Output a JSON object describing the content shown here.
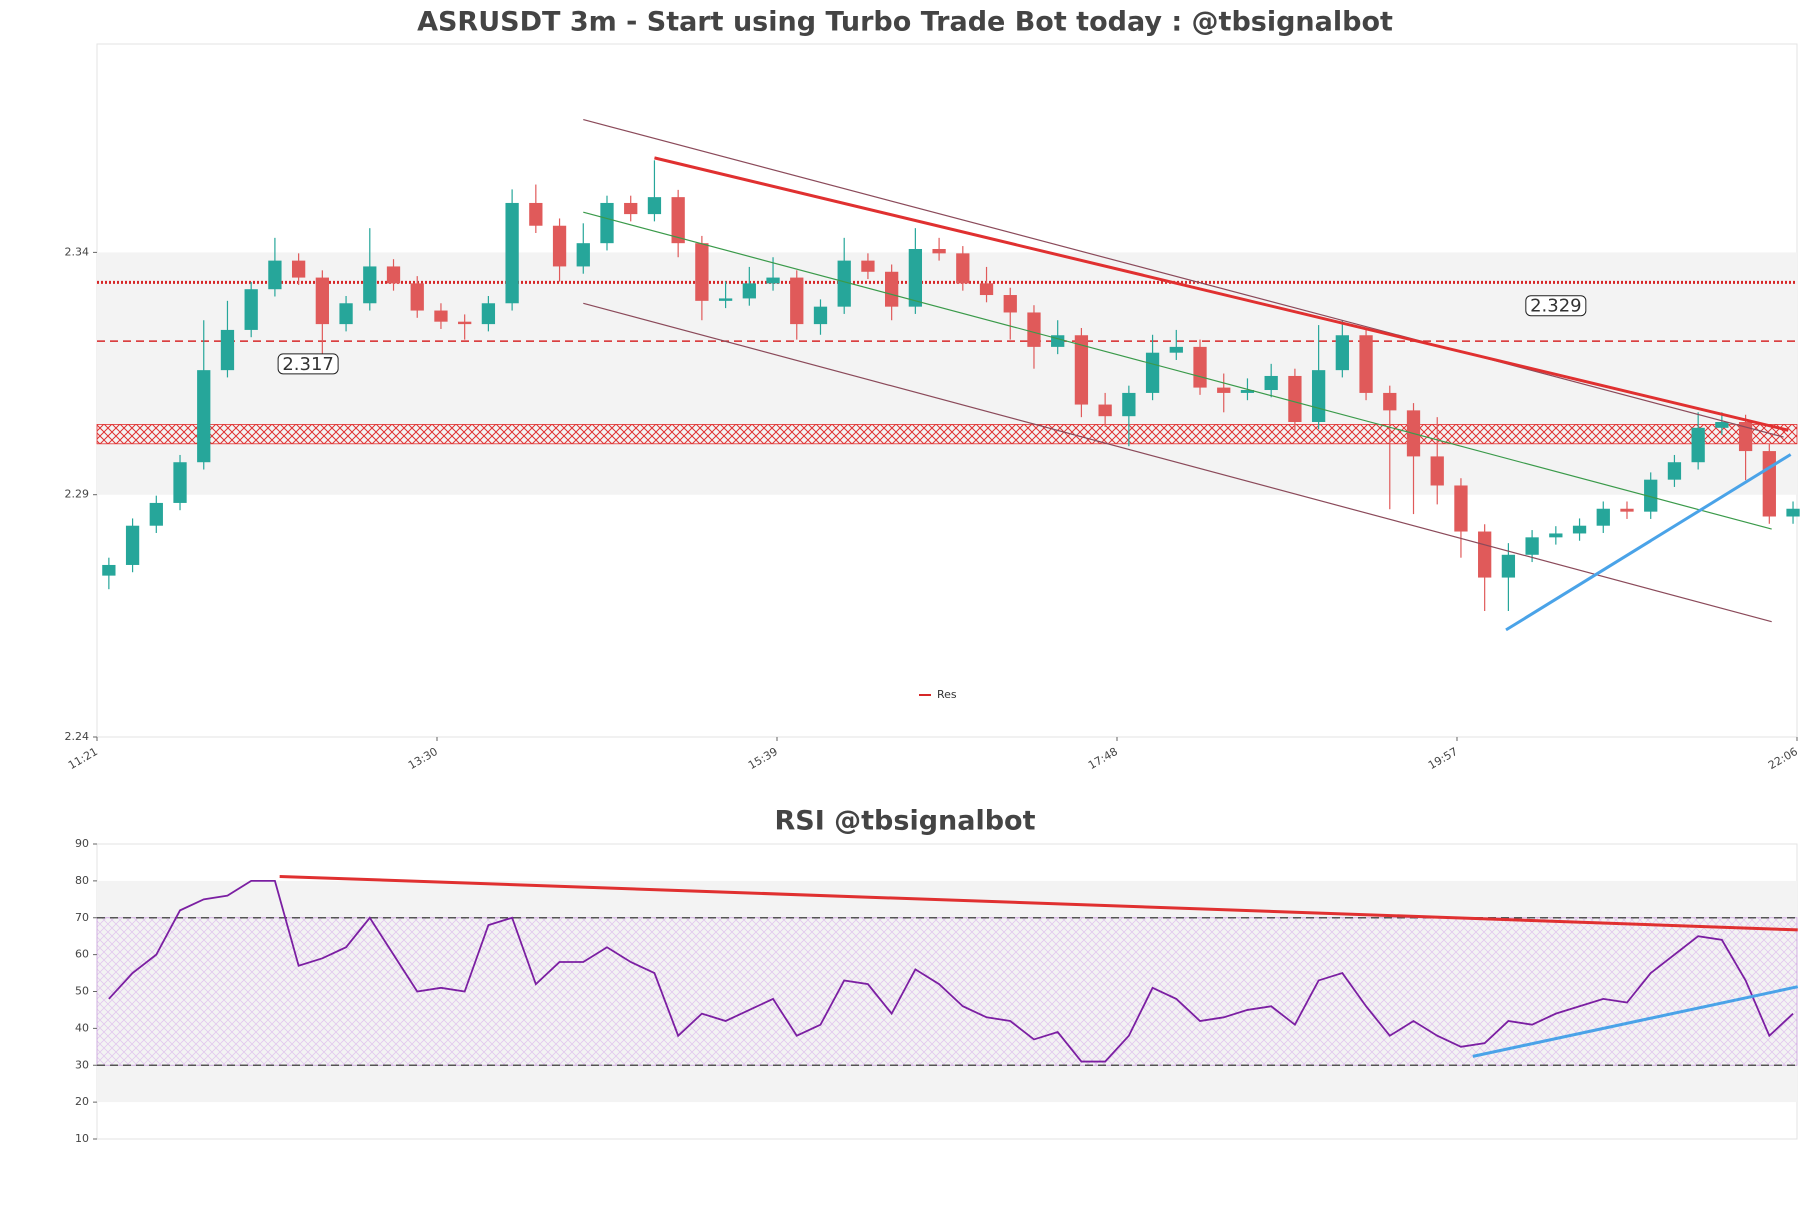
{
  "chart_data": [
    {
      "type": "candlestick",
      "title": "ASRUSDT 3m - Start using Turbo Trade Bot today : @tbsignalbot",
      "xlim": [
        0,
        71.667
      ],
      "xticks": [
        {
          "value": 0,
          "label": "11:21"
        },
        {
          "value": 14.333,
          "label": "13:30"
        },
        {
          "value": 28.667,
          "label": "15:39"
        },
        {
          "value": 43,
          "label": "17:48"
        },
        {
          "value": 57.333,
          "label": "19:57"
        },
        {
          "value": 71.667,
          "label": "22:06"
        }
      ],
      "ylim": [
        2.24,
        2.383
      ],
      "yticks": [
        2.24,
        2.29,
        2.34
      ],
      "up_color": "#26a69a",
      "down_color": "#e05a5a",
      "open": [
        2.2733,
        2.2755,
        2.2836,
        2.2883,
        2.2967,
        2.3157,
        2.324,
        2.3324,
        2.3383,
        2.3348,
        2.3252,
        2.3295,
        2.3371,
        2.3336,
        2.328,
        2.3257,
        2.3252,
        2.3295,
        2.3502,
        2.3455,
        2.3371,
        2.3419,
        2.3502,
        2.3479,
        2.3514,
        2.3419,
        2.33,
        2.3305,
        2.3336,
        2.3348,
        2.3252,
        2.3288,
        2.3383,
        2.336,
        2.3288,
        2.3407,
        2.3398,
        2.3336,
        2.3312,
        2.3276,
        2.3205,
        2.3229,
        2.3086,
        2.3062,
        2.311,
        2.3193,
        2.3205,
        2.3121,
        2.311,
        2.3116,
        2.3145,
        2.305,
        2.3157,
        2.3229,
        2.311,
        2.3074,
        2.2979,
        2.2919,
        2.2824,
        2.2729,
        2.2776,
        2.2812,
        2.282,
        2.2836,
        2.2871,
        2.2865,
        2.2931,
        2.2967,
        2.3038,
        2.305,
        2.299,
        2.2855
      ],
      "high": [
        2.277,
        2.2851,
        2.2898,
        2.2982,
        2.326,
        2.33,
        2.3339,
        2.343,
        2.3398,
        2.3363,
        2.331,
        2.345,
        2.3386,
        2.3351,
        2.3295,
        2.3272,
        2.331,
        2.353,
        2.354,
        2.347,
        2.346,
        2.3517,
        2.3517,
        2.359,
        2.3529,
        2.3434,
        2.334,
        2.337,
        2.339,
        2.3363,
        2.3303,
        2.343,
        2.3398,
        2.3375,
        2.345,
        2.343,
        2.3413,
        2.337,
        2.3327,
        2.3291,
        2.326,
        2.3244,
        2.311,
        2.3125,
        2.323,
        2.324,
        2.322,
        2.315,
        2.314,
        2.317,
        2.316,
        2.325,
        2.326,
        2.3244,
        2.3125,
        2.3089,
        2.306,
        2.2934,
        2.2839,
        2.28,
        2.2827,
        2.2835,
        2.2851,
        2.2886,
        2.2886,
        2.2946,
        2.2982,
        2.307,
        2.307,
        2.3065,
        2.3005,
        2.2886
      ],
      "low": [
        2.2705,
        2.274,
        2.2821,
        2.2868,
        2.2952,
        2.3142,
        2.3225,
        2.3309,
        2.3333,
        2.317,
        2.3237,
        2.328,
        2.3321,
        2.3265,
        2.3242,
        2.322,
        2.3237,
        2.328,
        2.344,
        2.334,
        2.3356,
        2.3404,
        2.3464,
        2.3464,
        2.339,
        2.326,
        2.3285,
        2.329,
        2.3321,
        2.322,
        2.323,
        2.3273,
        2.3345,
        2.326,
        2.3273,
        2.3383,
        2.3321,
        2.3297,
        2.322,
        2.316,
        2.319,
        2.306,
        2.304,
        2.3,
        2.3095,
        2.3178,
        2.3106,
        2.307,
        2.3095,
        2.3101,
        2.303,
        2.3035,
        2.3142,
        2.3095,
        2.287,
        2.286,
        2.288,
        2.277,
        2.266,
        2.266,
        2.2761,
        2.2797,
        2.2805,
        2.2821,
        2.285,
        2.285,
        2.2916,
        2.2952,
        2.3023,
        2.293,
        2.284,
        2.284
      ],
      "close": [
        2.2755,
        2.2836,
        2.2883,
        2.2967,
        2.3157,
        2.324,
        2.3324,
        2.3383,
        2.3348,
        2.3252,
        2.3295,
        2.3371,
        2.3336,
        2.328,
        2.3257,
        2.3252,
        2.3295,
        2.3502,
        2.3455,
        2.3371,
        2.3419,
        2.3502,
        2.3479,
        2.3514,
        2.3419,
        2.33,
        2.3305,
        2.3336,
        2.3348,
        2.3252,
        2.3288,
        2.3383,
        2.336,
        2.3288,
        2.3407,
        2.3398,
        2.3336,
        2.3312,
        2.3276,
        2.3205,
        2.3229,
        2.3086,
        2.3062,
        2.311,
        2.3193,
        2.3205,
        2.3121,
        2.311,
        2.3116,
        2.3145,
        2.305,
        2.3157,
        2.3229,
        2.311,
        2.3074,
        2.2979,
        2.2919,
        2.2824,
        2.2729,
        2.2776,
        2.2812,
        2.282,
        2.2836,
        2.2871,
        2.2865,
        2.2931,
        2.2967,
        2.3038,
        2.305,
        2.299,
        2.2855,
        2.2871
      ],
      "bands": [
        {
          "range": [
            2.29,
            2.34
          ],
          "color": "#f3f3f3"
        },
        {
          "range": [
            2.3005,
            2.3045
          ],
          "color": "#e03030",
          "hatch": true
        }
      ],
      "hlines": [
        {
          "value": 2.3338,
          "color": "#d62728",
          "style": "dotted"
        },
        {
          "value": 2.3217,
          "color": "#d62728",
          "style": "dashed"
        }
      ],
      "price_labels": [
        {
          "x": 8.9,
          "value": 2.317
        },
        {
          "x": 61.5,
          "value": 2.329
        }
      ],
      "lines": [
        {
          "x": [
            20.5,
            71.1
          ],
          "y": [
            2.3674,
            2.3019
          ],
          "color": "#8b4a5a",
          "width": 1.2
        },
        {
          "x": [
            20.5,
            70.6
          ],
          "y": [
            2.3295,
            2.2638
          ],
          "color": "#8b4a5a",
          "width": 1.2
        },
        {
          "x": [
            20.5,
            70.6
          ],
          "y": [
            2.3483,
            2.2829
          ],
          "color": "#3a9a4a",
          "width": 1.2
        },
        {
          "x": [
            23.5,
            71.3
          ],
          "y": [
            2.3595,
            2.3033
          ],
          "color": "#e03030",
          "width": 3
        },
        {
          "x": [
            59.4,
            71.4
          ],
          "y": [
            2.2621,
            2.2983
          ],
          "color": "#4aa3e8",
          "width": 3
        }
      ],
      "legend": {
        "name": "Res",
        "color": "#d62728",
        "position": "lower center"
      }
    },
    {
      "type": "line",
      "title": "RSI @tbsignalbot",
      "xlim": [
        0,
        71.667
      ],
      "ylim": [
        10,
        90
      ],
      "yticks": [
        10,
        20,
        30,
        40,
        50,
        60,
        70,
        80,
        90
      ],
      "color": "#7b1fa2",
      "values": [
        48,
        55,
        60,
        72,
        75,
        76,
        80,
        80,
        57,
        59,
        62,
        70,
        60,
        50,
        51,
        50,
        68,
        70,
        52,
        58,
        58,
        62,
        58,
        55,
        38,
        44,
        42,
        45,
        48,
        38,
        41,
        53,
        52,
        44,
        56,
        52,
        46,
        43,
        42,
        37,
        39,
        31,
        31,
        38,
        51,
        48,
        42,
        43,
        45,
        46,
        41,
        53,
        55,
        46,
        38,
        42,
        38,
        35,
        36,
        42,
        41,
        44,
        46,
        48,
        47,
        55,
        60,
        65,
        64,
        53,
        38,
        44
      ],
      "bands": [
        {
          "range": [
            20,
            80
          ],
          "color": "#f3f3f3"
        },
        {
          "range": [
            30,
            70
          ],
          "color": "#c9a0dc",
          "hatch": true
        }
      ],
      "hlines": [
        {
          "value": 30,
          "color": "#555555",
          "style": "dashed"
        },
        {
          "value": 70,
          "color": "#555555",
          "style": "dashed"
        }
      ],
      "lines": [
        {
          "x": [
            7.7,
            71.7
          ],
          "y": [
            81.2,
            66.7
          ],
          "color": "#e03030",
          "width": 3
        },
        {
          "x": [
            58.0,
            71.7
          ],
          "y": [
            32.4,
            51.3
          ],
          "color": "#4aa3e8",
          "width": 3
        }
      ]
    }
  ]
}
